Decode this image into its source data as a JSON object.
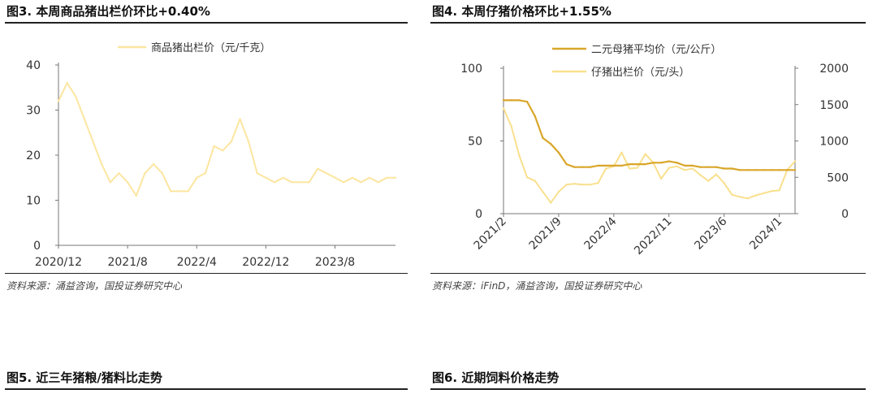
{
  "figures": [
    {
      "title": "图3. 本周商品猪出栏价环比+0.40%",
      "source": "资料来源：涌益咨询，国投证券研究中心"
    },
    {
      "title": "图4. 本周仔猪价格环比+1.55%",
      "source": "资料来源：iFinD，涌益咨询，国投证券研究中心"
    },
    {
      "title": "图5. 近三年猪粮/猪料比走势"
    },
    {
      "title": "图6. 近期饲料价格走势"
    }
  ],
  "colors": {
    "pig_price": "#FCE6A0",
    "sow_price": "#D9A62A",
    "piglet_price": "#F9E08E"
  },
  "chart_data": [
    {
      "type": "line",
      "x_tick_labels": [
        "2020/12",
        "2021/8",
        "2022/4",
        "2022/12",
        "2023/8"
      ],
      "y_tick_labels": [
        "0",
        "10",
        "20",
        "30",
        "40"
      ],
      "ylim": [
        0,
        40
      ],
      "legend_position": "top-center",
      "series": [
        {
          "name": "商品猪出栏价（元/千克）",
          "x": [
            "2020-12",
            "2021-01",
            "2021-02",
            "2021-03",
            "2021-04",
            "2021-05",
            "2021-06",
            "2021-07",
            "2021-08",
            "2021-09",
            "2021-10",
            "2021-11",
            "2021-12",
            "2022-01",
            "2022-02",
            "2022-03",
            "2022-04",
            "2022-05",
            "2022-06",
            "2022-07",
            "2022-08",
            "2022-09",
            "2022-10",
            "2022-11",
            "2022-12",
            "2023-01",
            "2023-02",
            "2023-03",
            "2023-04",
            "2023-05",
            "2023-06",
            "2023-07",
            "2023-08",
            "2023-09",
            "2023-10",
            "2023-11",
            "2023-12",
            "2024-01",
            "2024-02",
            "2024-03"
          ],
          "values": [
            32,
            36,
            33,
            28,
            23,
            18,
            14,
            16,
            14,
            11,
            16,
            18,
            16,
            12,
            12,
            12,
            15,
            16,
            22,
            21,
            23,
            28,
            23,
            16,
            15,
            14,
            15,
            14,
            14,
            14,
            17,
            16,
            15,
            14,
            15,
            14,
            15,
            14,
            15,
            15
          ]
        }
      ]
    },
    {
      "type": "line",
      "x_tick_labels": [
        "2021/2",
        "2021/9",
        "2022/4",
        "2022/11",
        "2023/6",
        "2024/1"
      ],
      "y_tick_labels": [
        "0",
        "50",
        "100"
      ],
      "y2_tick_labels": [
        "0",
        "500",
        "1000",
        "1500",
        "2000"
      ],
      "ylim": [
        0,
        100
      ],
      "y2lim": [
        0,
        2000
      ],
      "legend_position": "top-center",
      "series": [
        {
          "name": "二元母猪平均价（元/公斤）",
          "axis": "left",
          "x": [
            "2021-02",
            "2021-03",
            "2021-04",
            "2021-05",
            "2021-06",
            "2021-07",
            "2021-08",
            "2021-09",
            "2021-10",
            "2021-11",
            "2021-12",
            "2022-01",
            "2022-02",
            "2022-03",
            "2022-04",
            "2022-05",
            "2022-06",
            "2022-07",
            "2022-08",
            "2022-09",
            "2022-10",
            "2022-11",
            "2022-12",
            "2023-01",
            "2023-02",
            "2023-03",
            "2023-04",
            "2023-05",
            "2023-06",
            "2023-07",
            "2023-08",
            "2023-09",
            "2023-10",
            "2023-11",
            "2023-12",
            "2024-01",
            "2024-02",
            "2024-03"
          ],
          "values": [
            78,
            78,
            78,
            77,
            67,
            52,
            48,
            42,
            34,
            32,
            32,
            32,
            33,
            33,
            33,
            33,
            34,
            34,
            34,
            35,
            35,
            36,
            35,
            33,
            33,
            32,
            32,
            32,
            31,
            31,
            30,
            30,
            30,
            30,
            30,
            30,
            30,
            30
          ]
        },
        {
          "name": "仔猪出栏价（元/头）",
          "axis": "right",
          "x": [
            "2021-02",
            "2021-03",
            "2021-04",
            "2021-05",
            "2021-06",
            "2021-07",
            "2021-08",
            "2021-09",
            "2021-10",
            "2021-11",
            "2021-12",
            "2022-01",
            "2022-02",
            "2022-03",
            "2022-04",
            "2022-05",
            "2022-06",
            "2022-07",
            "2022-08",
            "2022-09",
            "2022-10",
            "2022-11",
            "2022-12",
            "2023-01",
            "2023-02",
            "2023-03",
            "2023-04",
            "2023-05",
            "2023-06",
            "2023-07",
            "2023-08",
            "2023-09",
            "2023-10",
            "2023-11",
            "2023-12",
            "2024-01",
            "2024-02",
            "2024-03"
          ],
          "values": [
            1450,
            1200,
            800,
            500,
            450,
            300,
            150,
            300,
            400,
            410,
            400,
            400,
            420,
            620,
            650,
            840,
            620,
            630,
            820,
            700,
            480,
            630,
            650,
            600,
            620,
            530,
            450,
            540,
            420,
            260,
            230,
            210,
            250,
            280,
            310,
            320,
            600,
            720
          ]
        }
      ]
    }
  ]
}
